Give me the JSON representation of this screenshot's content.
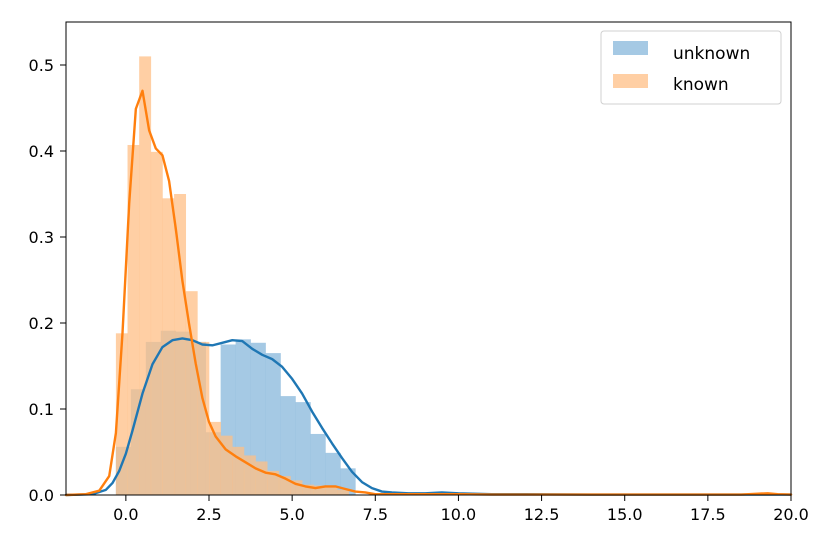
{
  "chart_data": {
    "type": "histogram-kde",
    "xlim": [
      -1.8,
      20.0
    ],
    "ylim": [
      0,
      0.55
    ],
    "grid": false,
    "legend_position": "top-right",
    "xticks": [
      {
        "value": 0.0,
        "label": "0.0"
      },
      {
        "value": 2.5,
        "label": "2.5"
      },
      {
        "value": 5.0,
        "label": "5.0"
      },
      {
        "value": 7.5,
        "label": "7.5"
      },
      {
        "value": 10.0,
        "label": "10.0"
      },
      {
        "value": 12.5,
        "label": "12.5"
      },
      {
        "value": 15.0,
        "label": "15.0"
      },
      {
        "value": 17.5,
        "label": "17.5"
      },
      {
        "value": 20.0,
        "label": "20.0"
      }
    ],
    "yticks": [
      {
        "value": 0.0,
        "label": "0.0"
      },
      {
        "value": 0.1,
        "label": "0.1"
      },
      {
        "value": 0.2,
        "label": "0.2"
      },
      {
        "value": 0.3,
        "label": "0.3"
      },
      {
        "value": 0.4,
        "label": "0.4"
      },
      {
        "value": 0.5,
        "label": "0.5"
      }
    ],
    "series": [
      {
        "name": "unknown",
        "bar_color": "#8fbbdd",
        "bar_opacity": 0.8,
        "line_color": "#1f77b4",
        "bins": {
          "edges": [
            -0.3,
            0.15,
            0.6,
            1.05,
            1.5,
            1.95,
            2.4,
            2.85,
            3.3,
            3.75,
            4.2,
            4.65,
            5.1,
            5.55,
            6.0,
            6.45,
            6.9
          ],
          "heights": [
            0.056,
            0.123,
            0.178,
            0.191,
            0.19,
            0.178,
            0.073,
            0.175,
            0.181,
            0.177,
            0.165,
            0.115,
            0.108,
            0.071,
            0.049,
            0.031
          ]
        },
        "kde": {
          "x": [
            -1.8,
            -1.0,
            -0.6,
            -0.4,
            -0.2,
            0.0,
            0.2,
            0.5,
            0.8,
            1.1,
            1.4,
            1.7,
            2.0,
            2.3,
            2.6,
            2.9,
            3.2,
            3.5,
            3.8,
            4.1,
            4.4,
            4.7,
            5.0,
            5.3,
            5.6,
            5.9,
            6.2,
            6.5,
            6.8,
            7.1,
            7.4,
            7.7,
            8.0,
            8.5,
            9.0,
            9.5,
            10.0,
            11.0,
            12.0,
            14.0,
            16.0,
            18.0,
            20.0
          ],
          "y": [
            0.0,
            0.001,
            0.006,
            0.014,
            0.028,
            0.048,
            0.075,
            0.118,
            0.152,
            0.172,
            0.18,
            0.182,
            0.18,
            0.175,
            0.174,
            0.177,
            0.18,
            0.179,
            0.17,
            0.163,
            0.158,
            0.149,
            0.135,
            0.118,
            0.097,
            0.078,
            0.06,
            0.043,
            0.027,
            0.015,
            0.008,
            0.004,
            0.003,
            0.002,
            0.002,
            0.003,
            0.002,
            0.001,
            0.001,
            0.0005,
            0.0005,
            0.0005,
            0.0005
          ]
        }
      },
      {
        "name": "known",
        "bar_color": "#ffbf86",
        "bar_opacity": 0.75,
        "line_color": "#ff7f0e",
        "bins": {
          "edges": [
            -0.3,
            0.05,
            0.4,
            0.75,
            1.1,
            1.45,
            1.8,
            2.15,
            2.5,
            2.85,
            3.2,
            3.55,
            3.9,
            4.25,
            4.6,
            4.95,
            5.3,
            5.65,
            6.0,
            6.35,
            6.7
          ],
          "heights": [
            0.188,
            0.407,
            0.51,
            0.399,
            0.345,
            0.35,
            0.237,
            0.178,
            0.085,
            0.069,
            0.056,
            0.046,
            0.039,
            0.028,
            0.022,
            0.017,
            0.012,
            0.011,
            0.009,
            0.006
          ]
        },
        "kde": {
          "x": [
            -1.8,
            -1.2,
            -0.8,
            -0.5,
            -0.3,
            -0.1,
            0.1,
            0.3,
            0.5,
            0.7,
            0.9,
            1.1,
            1.3,
            1.5,
            1.7,
            1.9,
            2.1,
            2.3,
            2.5,
            2.7,
            3.0,
            3.3,
            3.6,
            3.9,
            4.2,
            4.5,
            4.8,
            5.1,
            5.4,
            5.7,
            6.0,
            6.3,
            6.6,
            6.9,
            7.2,
            7.5,
            8.0,
            9.0,
            10.0,
            11.0,
            13.0,
            15.0,
            17.0,
            18.5,
            19.3,
            19.6,
            20.0
          ],
          "y": [
            0.0,
            0.001,
            0.005,
            0.022,
            0.072,
            0.189,
            0.339,
            0.449,
            0.47,
            0.424,
            0.403,
            0.395,
            0.365,
            0.31,
            0.249,
            0.199,
            0.153,
            0.113,
            0.085,
            0.068,
            0.053,
            0.045,
            0.038,
            0.031,
            0.026,
            0.024,
            0.019,
            0.013,
            0.01,
            0.008,
            0.01,
            0.01,
            0.007,
            0.004,
            0.003,
            0.001,
            0.001,
            0.001,
            0.001,
            0.0005,
            0.0005,
            0.0005,
            0.0005,
            0.0005,
            0.002,
            0.001,
            0.0005
          ]
        }
      }
    ]
  }
}
